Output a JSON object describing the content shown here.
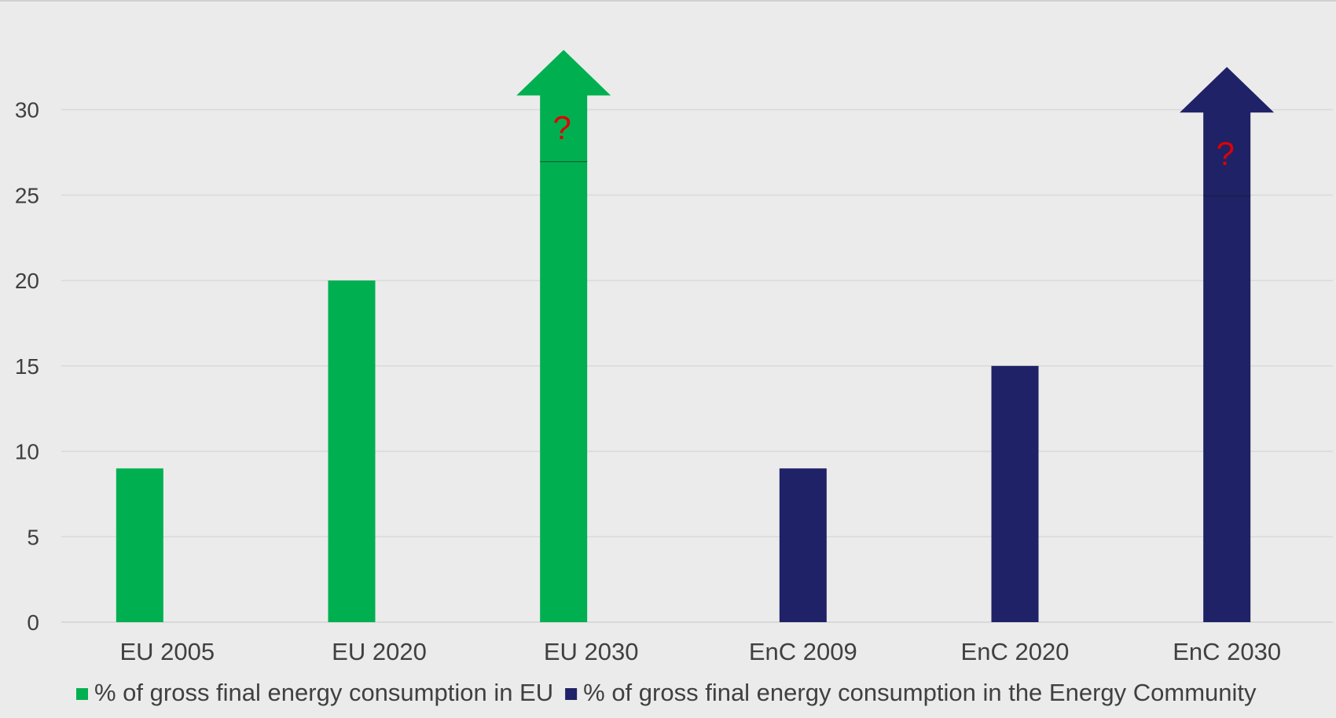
{
  "chart_data": {
    "type": "bar",
    "categories": [
      "EU 2005",
      "EU 2020",
      "EU 2030",
      "EnC 2009",
      "EnC 2020",
      "EnC 2030"
    ],
    "series": [
      {
        "name": "% of gross final energy consumption in EU",
        "color": "#00b050",
        "values": [
          9,
          20,
          27,
          null,
          null,
          null
        ]
      },
      {
        "name": "% of gross final energy consumption in the Energy Community",
        "color": "#1f2266",
        "values": [
          null,
          null,
          null,
          9,
          15,
          25
        ]
      }
    ],
    "arrows": [
      {
        "category": "EU 2030",
        "series": 0,
        "label": "?",
        "base_value": 27,
        "tip_value": 33.5
      },
      {
        "category": "EnC 2030",
        "series": 1,
        "label": "?",
        "base_value": 25,
        "tip_value": 32.5
      }
    ],
    "ylim": [
      0,
      33.5
    ],
    "yticks": [
      0,
      5,
      10,
      15,
      20,
      25,
      30
    ],
    "grid": true,
    "legend_position": "bottom",
    "question_color": "#e00000",
    "grid_color": "#d9d9d9",
    "text_color": "#404040"
  }
}
